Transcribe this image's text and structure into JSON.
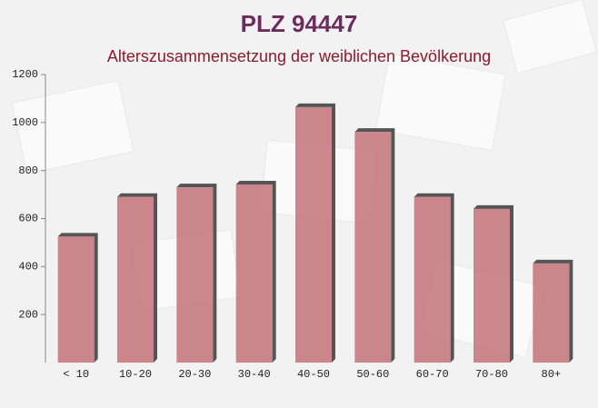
{
  "chart_data": {
    "type": "bar",
    "title": "PLZ 94447",
    "subtitle": "Alterszusammensetzung der weiblichen Bevölkerung",
    "categories": [
      "< 10",
      "10-20",
      "20-30",
      "30-40",
      "40-50",
      "50-60",
      "60-70",
      "70-80",
      "80+"
    ],
    "values": [
      525,
      690,
      730,
      742,
      1064,
      961,
      690,
      640,
      413
    ],
    "color": "#c4737a",
    "ylim": [
      0,
      1200
    ],
    "yticks": [
      200,
      400,
      600,
      800,
      1000,
      1200
    ],
    "grid": false
  }
}
